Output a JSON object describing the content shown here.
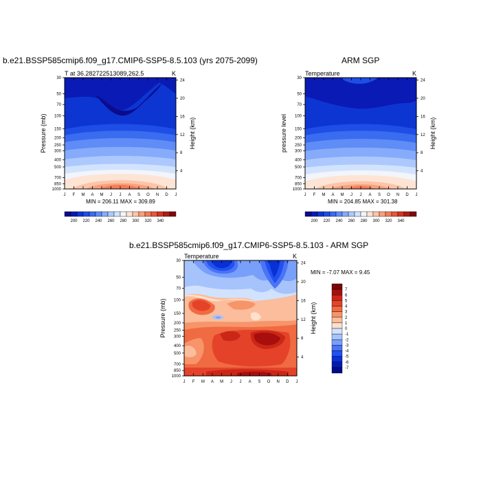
{
  "chart_data": [
    {
      "type": "heatmap",
      "title": "b.e21.BSSP585cmip6.f09_g17.CMIP6-SSP5-8.5.103 (yrs 2075-2099)",
      "left_label": "T at 36.282722513089,262.5",
      "units": "K",
      "ylabel": "Pressure (mb)",
      "ylabel_right": "Height (km)",
      "x_ticks": [
        "J",
        "F",
        "M",
        "A",
        "M",
        "J",
        "J",
        "A",
        "S",
        "O",
        "N",
        "D",
        "J"
      ],
      "pressure_ticks": [
        "30",
        "50",
        "70",
        "100",
        "150",
        "200",
        "250",
        "300",
        "400",
        "500",
        "700",
        "850",
        "1000"
      ],
      "height_ticks": [
        "24",
        "20",
        "16",
        "12",
        "8",
        "4"
      ],
      "min": 206.11,
      "max": 309.89,
      "stats_label": "MIN = 206.11 MAX = 309.89",
      "colorbar_ticks": [
        "200",
        "220",
        "240",
        "260",
        "280",
        "300",
        "320",
        "340"
      ]
    },
    {
      "type": "heatmap",
      "title": "ARM SGP",
      "left_label": "Temperature",
      "units": "K",
      "ylabel": "pressure level",
      "ylabel_right": "Height (km)",
      "x_ticks": [
        "J",
        "F",
        "M",
        "A",
        "M",
        "J",
        "J",
        "A",
        "S",
        "O",
        "N",
        "D",
        "J"
      ],
      "pressure_ticks": [
        "30",
        "50",
        "70",
        "100",
        "150",
        "200",
        "250",
        "300",
        "400",
        "500",
        "700",
        "850",
        "1000"
      ],
      "height_ticks": [
        "24",
        "20",
        "16",
        "12",
        "8",
        "4"
      ],
      "min": 204.85,
      "max": 301.38,
      "stats_label": "MIN = 204.85 MAX = 301.38",
      "colorbar_ticks": [
        "200",
        "220",
        "240",
        "260",
        "280",
        "300",
        "320",
        "340"
      ]
    },
    {
      "type": "heatmap",
      "title": "b.e21.BSSP585cmip6.f09_g17.CMIP6-SSP5-8.5.103 - ARM SGP",
      "left_label": "Temperature",
      "units": "K",
      "ylabel": "Pressure (mb)",
      "ylabel_right": "Height (km)",
      "x_ticks": [
        "J",
        "F",
        "M",
        "A",
        "M",
        "J",
        "J",
        "A",
        "S",
        "O",
        "N",
        "D",
        "J"
      ],
      "pressure_ticks": [
        "30",
        "50",
        "70",
        "100",
        "150",
        "200",
        "250",
        "300",
        "400",
        "500",
        "700",
        "850",
        "1000"
      ],
      "height_ticks": [
        "24",
        "20",
        "16",
        "12",
        "8",
        "4"
      ],
      "min": -7.07,
      "max": 9.45,
      "stats_label": "MIN =  -7.07 MAX =   9.45",
      "colorbar_ticks": [
        "7",
        "6",
        "5",
        "4",
        "3",
        "2",
        "1",
        "0",
        "-1",
        "-2",
        "-3",
        "-4",
        "-5",
        "-6",
        "-7"
      ]
    }
  ],
  "palettes": {
    "abs": [
      "#0a0c8c",
      "#0a1ab4",
      "#0d35d2",
      "#1e4ee6",
      "#3a6cf0",
      "#5f8cf6",
      "#86abfa",
      "#adc8fc",
      "#d2e3fe",
      "#f2f5fa",
      "#fde4d4",
      "#fcc4a8",
      "#f9a07c",
      "#f47b57",
      "#e9563a",
      "#d23524",
      "#b01c16",
      "#7d0a0a"
    ],
    "diff": [
      "#000a8a",
      "#0319b2",
      "#0730d6",
      "#2150f0",
      "#4a74f6",
      "#789ffa",
      "#a7c3fc",
      "#d1e2fe",
      "#fde0cd",
      "#fbbd9c",
      "#f7946a",
      "#f06a42",
      "#e4432a",
      "#cc2716",
      "#a80e0e",
      "#7a0505"
    ]
  }
}
